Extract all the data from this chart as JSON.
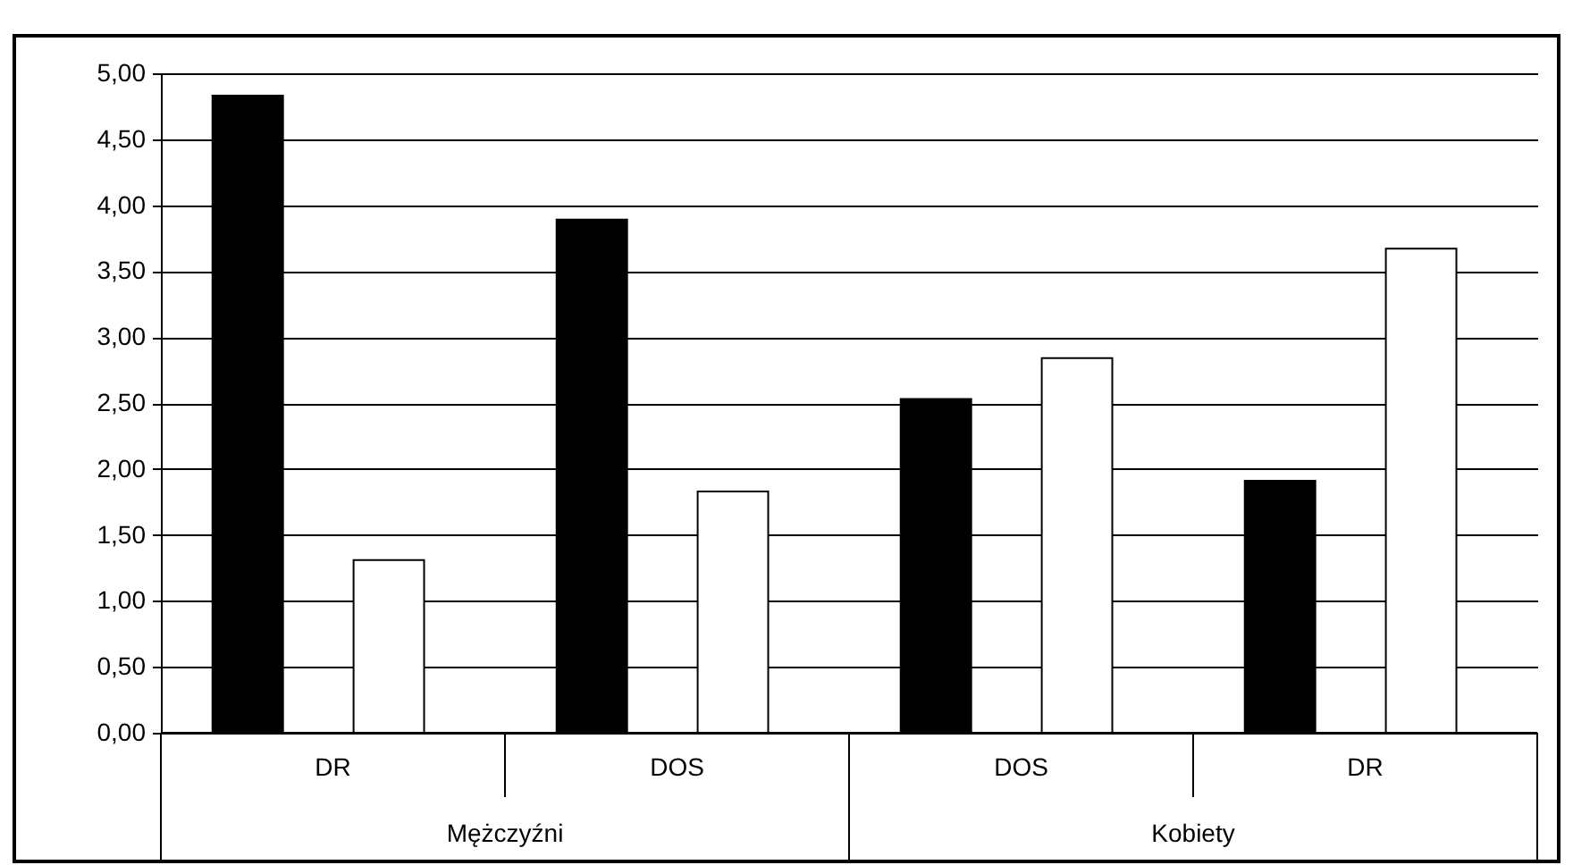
{
  "chart_data": {
    "type": "bar",
    "categories": [
      "DR",
      "DOS",
      "DOS",
      "DR"
    ],
    "series": [
      {
        "color": "#000000",
        "values": [
          4.83,
          3.89,
          2.53,
          1.91
        ]
      },
      {
        "color": "#ffffff",
        "values": [
          1.31,
          1.83,
          2.84,
          3.67
        ]
      }
    ],
    "annotations": [
      "Mężczyźni",
      "Kobiety"
    ],
    "ylim": [
      0,
      5
    ],
    "yticks": [
      {
        "value": 0,
        "label": "0,00"
      },
      {
        "value": 0.5,
        "label": "0,50"
      },
      {
        "value": 1,
        "label": "1,00"
      },
      {
        "value": 1.5,
        "label": "1,50"
      },
      {
        "value": 2,
        "label": "2,00"
      },
      {
        "value": 2.5,
        "label": "2,50"
      },
      {
        "value": 3,
        "label": "3,00"
      },
      {
        "value": 3.5,
        "label": "3,50"
      },
      {
        "value": 4,
        "label": "4,00"
      },
      {
        "value": 4.5,
        "label": "4,50"
      },
      {
        "value": 5,
        "label": "5,00"
      }
    ],
    "grid": "y",
    "legend": false
  }
}
